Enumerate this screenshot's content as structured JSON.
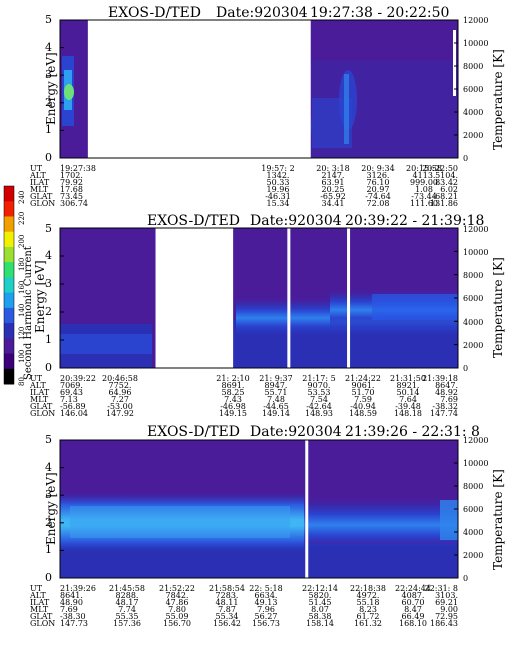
{
  "colors": {
    "background_plasma": "#4a1c9a",
    "band_dark": "#2a2fb4",
    "band_mid": "#2b5ae0",
    "band_bright": "#2f86ee",
    "band_core": "#3fb5f5",
    "hot_green": "#6ee07a",
    "data_gap": "#ffffff"
  },
  "colorbar": {
    "label": "Second Harmonic Current",
    "ticks": [
      "80",
      "100",
      "120",
      "140",
      "160",
      "180",
      "200",
      "220",
      "240"
    ],
    "colors": [
      "#000000",
      "#3b007a",
      "#4a1c9a",
      "#2a2fb4",
      "#2b5ae0",
      "#1f9ff0",
      "#20d0c8",
      "#30e070",
      "#9ae030",
      "#f0f000",
      "#f0a000",
      "#f02000",
      "#d00000"
    ]
  },
  "chart_data": [
    {
      "type": "heatmap",
      "title": "EXOS-D/TED",
      "date": "Date:920304",
      "time_range": "19:27:38 - 20:22:50",
      "ylabel": "Energy [eV]",
      "ylabel_right": "Temperature [K]",
      "ylim": [
        0,
        5
      ],
      "yticks": [
        "0",
        "1",
        "2",
        "3",
        "4",
        "5"
      ],
      "ylim_right": [
        0,
        12000
      ],
      "yticks_right": [
        "0",
        "2000",
        "4000",
        "6000",
        "8000",
        "10000",
        "12000"
      ],
      "grid": false,
      "row_labels": [
        "UT",
        "ALT",
        "ILAT",
        "MLT",
        "GLAT",
        "GLON"
      ],
      "columns": [
        {
          "pos": 0.0,
          "values": [
            "19:27:38",
            "1702.",
            "79.92",
            "17.68",
            "73.45",
            "306.74"
          ]
        },
        {
          "pos": 0.633,
          "values": [
            "19:57: 2",
            "1342.",
            "50.33",
            "19.96",
            "-46.31",
            "15.34"
          ]
        },
        {
          "pos": 0.737,
          "values": [
            "20: 3:18",
            "2147.",
            "63.91",
            "20.25",
            "-65.92",
            "34.41"
          ]
        },
        {
          "pos": 0.837,
          "values": [
            "20: 9:34",
            "3126.",
            "76.10",
            "20.97",
            "-74.64",
            "72.08"
          ]
        },
        {
          "pos": 0.937,
          "values": [
            "20:15:58",
            "4113.",
            "999.00",
            "1.08",
            "-73.44",
            "111.60"
          ]
        },
        {
          "pos": 1.0,
          "values": [
            "20:22:50",
            "5104.",
            "83.42",
            "6.02",
            "-68.21",
            "131.86"
          ]
        }
      ],
      "gaps": [
        [
          0.07,
          0.63
        ]
      ],
      "white_markers": []
    },
    {
      "type": "heatmap",
      "title": "EXOS-D/TED",
      "date": "Date:920304",
      "time_range": "20:39:22 - 21:39:18",
      "ylabel": "Energy [eV]",
      "ylabel_right": "Temperature [K]",
      "ylim": [
        0,
        5
      ],
      "yticks": [
        "0",
        "1",
        "2",
        "3",
        "4",
        "5"
      ],
      "ylim_right": [
        0,
        12000
      ],
      "yticks_right": [
        "0",
        "2000",
        "4000",
        "6000",
        "8000",
        "10000",
        "12000"
      ],
      "grid": false,
      "row_labels": [
        "UT",
        "ALT",
        "ILAT",
        "MLT",
        "GLAT",
        "GLON"
      ],
      "columns": [
        {
          "pos": 0.0,
          "values": [
            "20:39:22",
            "7069.",
            "69.43",
            "7.13",
            "-56.89",
            "146.04"
          ]
        },
        {
          "pos": 0.117,
          "values": [
            "20:46:58",
            "7752.",
            "64.96",
            "7.27",
            "-53.00",
            "147.92"
          ]
        },
        {
          "pos": 0.436,
          "values": [
            "21: 2:10",
            "8691.",
            "58.25",
            "7.43",
            "-46.98",
            "149.15"
          ]
        },
        {
          "pos": 0.543,
          "values": [
            "21: 9:37",
            "8947.",
            "55.71",
            "7.48",
            "-44.65",
            "149.14"
          ]
        },
        {
          "pos": 0.652,
          "values": [
            "21:17: 5",
            "9070.",
            "53.53",
            "7.54",
            "-42.64",
            "148.93"
          ]
        },
        {
          "pos": 0.762,
          "values": [
            "21:24:22",
            "9061.",
            "51.70",
            "7.59",
            "-40.94",
            "148.59"
          ]
        },
        {
          "pos": 0.875,
          "values": [
            "21:31:50",
            "8921.",
            "50.14",
            "7.64",
            "-39.48",
            "148.18"
          ]
        },
        {
          "pos": 1.0,
          "values": [
            "21:39:18",
            "8647.",
            "48.92",
            "7.69",
            "-38.32",
            "147.74"
          ]
        }
      ],
      "gaps": [
        [
          0.24,
          0.435
        ]
      ],
      "white_markers": [
        0.575,
        0.725
      ]
    },
    {
      "type": "heatmap",
      "title": "EXOS-D/TED",
      "date": "Date:920304",
      "time_range": "21:39:26 - 22:31: 8",
      "ylabel": "Energy [eV]",
      "ylabel_right": "Temperature [K]",
      "ylim": [
        0,
        5
      ],
      "yticks": [
        "0",
        "1",
        "2",
        "3",
        "4",
        "5"
      ],
      "ylim_right": [
        0,
        12000
      ],
      "yticks_right": [
        "0",
        "2000",
        "4000",
        "6000",
        "8000",
        "10000",
        "12000"
      ],
      "grid": false,
      "row_labels": [
        "UT",
        "ALT",
        "ILAT",
        "MLT",
        "GLAT",
        "GLON"
      ],
      "columns": [
        {
          "pos": 0.0,
          "values": [
            "21:39:26",
            "8641.",
            "48.90",
            "7.69",
            "-38.30",
            "147.73"
          ]
        },
        {
          "pos": 0.14,
          "values": [
            "21:45:58",
            "8288.",
            "48.17",
            "7.74",
            "55.35",
            "157.36"
          ]
        },
        {
          "pos": 0.265,
          "values": [
            "21:52:22",
            "7842.",
            "47.86",
            "7.80",
            "55.09",
            "156.70"
          ]
        },
        {
          "pos": 0.39,
          "values": [
            "21:58:54",
            "7283.",
            "48.11",
            "7.87",
            "55.34",
            "156.42"
          ]
        },
        {
          "pos": 0.515,
          "values": [
            "22: 5:18",
            "6634.",
            "49.13",
            "7.96",
            "56.27",
            "156.73"
          ]
        },
        {
          "pos": 0.655,
          "values": [
            "22:12:14",
            "5820.",
            "51.45",
            "8.07",
            "58.38",
            "158.14"
          ]
        },
        {
          "pos": 0.775,
          "values": [
            "22:18:38",
            "4972.",
            "55.18",
            "8.23",
            "61.72",
            "161.32"
          ]
        },
        {
          "pos": 0.885,
          "values": [
            "22:24:44",
            "4087.",
            "60.70",
            "8.47",
            "66.49",
            "168.10"
          ]
        },
        {
          "pos": 1.0,
          "values": [
            "22:31: 8",
            "3103.",
            "69.21",
            "9.00",
            "72.95",
            "186.43"
          ]
        }
      ],
      "gaps": [],
      "white_markers": [
        0.62
      ]
    }
  ]
}
